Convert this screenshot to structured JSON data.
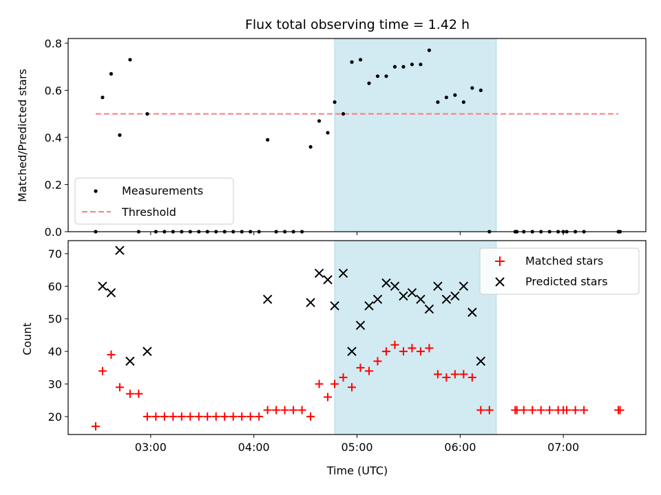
{
  "title": "Flux total observing time = 1.42 h",
  "colors": {
    "measurement": "#000000",
    "threshold": "#ff7b7b",
    "matched": "#ff0000",
    "predicted": "#000000",
    "span": "#add8e6"
  },
  "chart_data": [
    {
      "type": "scatter",
      "ylabel": "Matched/Predicted stars",
      "xlim_hours": [
        2.2,
        7.8
      ],
      "ylim": [
        0,
        0.82
      ],
      "yticks": [
        "0.0",
        "0.2",
        "0.4",
        "0.6",
        "0.8"
      ],
      "yticks_values": [
        0,
        0.2,
        0.4,
        0.6,
        0.8
      ],
      "shaded_span": [
        "04:47",
        "06:21"
      ],
      "threshold": {
        "name": "Threshold",
        "value": 0.5,
        "x_from": "02:28",
        "x_to": "07:32",
        "style": "dashed"
      },
      "legend": {
        "position": "lower-left",
        "entries": [
          "Measurements",
          "Threshold"
        ]
      },
      "series": [
        {
          "name": "Measurements",
          "marker": "dot",
          "points": [
            [
              "02:28",
              0.0
            ],
            [
              "02:32",
              0.57
            ],
            [
              "02:37",
              0.67
            ],
            [
              "02:42",
              0.41
            ],
            [
              "02:48",
              0.73
            ],
            [
              "02:53",
              0.0
            ],
            [
              "02:58",
              0.5
            ],
            [
              "03:03",
              0.0
            ],
            [
              "03:08",
              0.0
            ],
            [
              "03:13",
              0.0
            ],
            [
              "03:18",
              0.0
            ],
            [
              "03:23",
              0.0
            ],
            [
              "03:28",
              0.0
            ],
            [
              "03:33",
              0.0
            ],
            [
              "03:38",
              0.0
            ],
            [
              "03:43",
              0.0
            ],
            [
              "03:48",
              0.0
            ],
            [
              "03:53",
              0.0
            ],
            [
              "03:58",
              0.0
            ],
            [
              "04:03",
              0.0
            ],
            [
              "04:08",
              0.39
            ],
            [
              "04:13",
              0.0
            ],
            [
              "04:18",
              0.0
            ],
            [
              "04:23",
              0.0
            ],
            [
              "04:28",
              0.0
            ],
            [
              "04:33",
              0.36
            ],
            [
              "04:38",
              0.47
            ],
            [
              "04:43",
              0.42
            ],
            [
              "04:47",
              0.55
            ],
            [
              "04:52",
              0.5
            ],
            [
              "04:57",
              0.72
            ],
            [
              "05:02",
              0.73
            ],
            [
              "05:07",
              0.63
            ],
            [
              "05:12",
              0.66
            ],
            [
              "05:17",
              0.66
            ],
            [
              "05:22",
              0.7
            ],
            [
              "05:27",
              0.7
            ],
            [
              "05:32",
              0.71
            ],
            [
              "05:37",
              0.71
            ],
            [
              "05:42",
              0.77
            ],
            [
              "05:47",
              0.55
            ],
            [
              "05:52",
              0.57
            ],
            [
              "05:57",
              0.58
            ],
            [
              "06:02",
              0.55
            ],
            [
              "06:07",
              0.61
            ],
            [
              "06:12",
              0.6
            ],
            [
              "06:17",
              0.0
            ],
            [
              "06:32",
              0.0
            ],
            [
              "06:33",
              0.0
            ],
            [
              "06:37",
              0.0
            ],
            [
              "06:42",
              0.0
            ],
            [
              "06:47",
              0.0
            ],
            [
              "06:52",
              0.0
            ],
            [
              "06:57",
              0.0
            ],
            [
              "07:00",
              0.0
            ],
            [
              "07:02",
              0.0
            ],
            [
              "07:07",
              0.0
            ],
            [
              "07:12",
              0.0
            ],
            [
              "07:32",
              0.0
            ],
            [
              "07:33",
              0.0
            ]
          ]
        }
      ]
    },
    {
      "type": "scatter",
      "xlabel": "Time (UTC)",
      "ylabel": "Count",
      "xlim_hours": [
        2.2,
        7.8
      ],
      "ylim": [
        14.5,
        74
      ],
      "yticks": [
        "20",
        "30",
        "40",
        "50",
        "60",
        "70"
      ],
      "yticks_values": [
        20,
        30,
        40,
        50,
        60,
        70
      ],
      "xticks": [
        "03:00",
        "04:00",
        "05:00",
        "06:00",
        "07:00"
      ],
      "xticks_hours": [
        3,
        4,
        5,
        6,
        7
      ],
      "shaded_span": [
        "04:47",
        "06:21"
      ],
      "legend": {
        "position": "top-right",
        "entries": [
          "Matched stars",
          "Predicted stars"
        ]
      },
      "series": [
        {
          "name": "Matched stars",
          "marker": "plus",
          "points": [
            [
              "02:28",
              17
            ],
            [
              "02:32",
              34
            ],
            [
              "02:37",
              39
            ],
            [
              "02:42",
              29
            ],
            [
              "02:48",
              27
            ],
            [
              "02:53",
              27
            ],
            [
              "02:58",
              20
            ],
            [
              "03:03",
              20
            ],
            [
              "03:08",
              20
            ],
            [
              "03:13",
              20
            ],
            [
              "03:18",
              20
            ],
            [
              "03:23",
              20
            ],
            [
              "03:28",
              20
            ],
            [
              "03:33",
              20
            ],
            [
              "03:38",
              20
            ],
            [
              "03:43",
              20
            ],
            [
              "03:48",
              20
            ],
            [
              "03:53",
              20
            ],
            [
              "03:58",
              20
            ],
            [
              "04:03",
              20
            ],
            [
              "04:08",
              22
            ],
            [
              "04:13",
              22
            ],
            [
              "04:18",
              22
            ],
            [
              "04:23",
              22
            ],
            [
              "04:28",
              22
            ],
            [
              "04:33",
              20
            ],
            [
              "04:38",
              30
            ],
            [
              "04:43",
              26
            ],
            [
              "04:47",
              30
            ],
            [
              "04:52",
              32
            ],
            [
              "04:57",
              29
            ],
            [
              "05:02",
              35
            ],
            [
              "05:07",
              34
            ],
            [
              "05:12",
              37
            ],
            [
              "05:17",
              40
            ],
            [
              "05:22",
              42
            ],
            [
              "05:27",
              40
            ],
            [
              "05:32",
              41
            ],
            [
              "05:37",
              40
            ],
            [
              "05:42",
              41
            ],
            [
              "05:47",
              33
            ],
            [
              "05:52",
              32
            ],
            [
              "05:57",
              33
            ],
            [
              "06:02",
              33
            ],
            [
              "06:07",
              32
            ],
            [
              "06:12",
              22
            ],
            [
              "06:17",
              22
            ],
            [
              "06:32",
              22
            ],
            [
              "06:33",
              22
            ],
            [
              "06:37",
              22
            ],
            [
              "06:42",
              22
            ],
            [
              "06:47",
              22
            ],
            [
              "06:52",
              22
            ],
            [
              "06:57",
              22
            ],
            [
              "07:00",
              22
            ],
            [
              "07:02",
              22
            ],
            [
              "07:07",
              22
            ],
            [
              "07:12",
              22
            ],
            [
              "07:32",
              22
            ],
            [
              "07:33",
              22
            ]
          ]
        },
        {
          "name": "Predicted stars",
          "marker": "x",
          "points": [
            [
              "02:32",
              60
            ],
            [
              "02:37",
              58
            ],
            [
              "02:42",
              71
            ],
            [
              "02:48",
              37
            ],
            [
              "02:58",
              40
            ],
            [
              "04:08",
              56
            ],
            [
              "04:33",
              55
            ],
            [
              "04:38",
              64
            ],
            [
              "04:43",
              62
            ],
            [
              "04:47",
              54
            ],
            [
              "04:52",
              64
            ],
            [
              "04:57",
              40
            ],
            [
              "05:02",
              48
            ],
            [
              "05:07",
              54
            ],
            [
              "05:12",
              56
            ],
            [
              "05:17",
              61
            ],
            [
              "05:22",
              60
            ],
            [
              "05:27",
              57
            ],
            [
              "05:32",
              58
            ],
            [
              "05:37",
              56
            ],
            [
              "05:42",
              53
            ],
            [
              "05:47",
              60
            ],
            [
              "05:52",
              56
            ],
            [
              "05:57",
              57
            ],
            [
              "06:02",
              60
            ],
            [
              "06:07",
              52
            ],
            [
              "06:12",
              37
            ]
          ]
        }
      ]
    }
  ]
}
